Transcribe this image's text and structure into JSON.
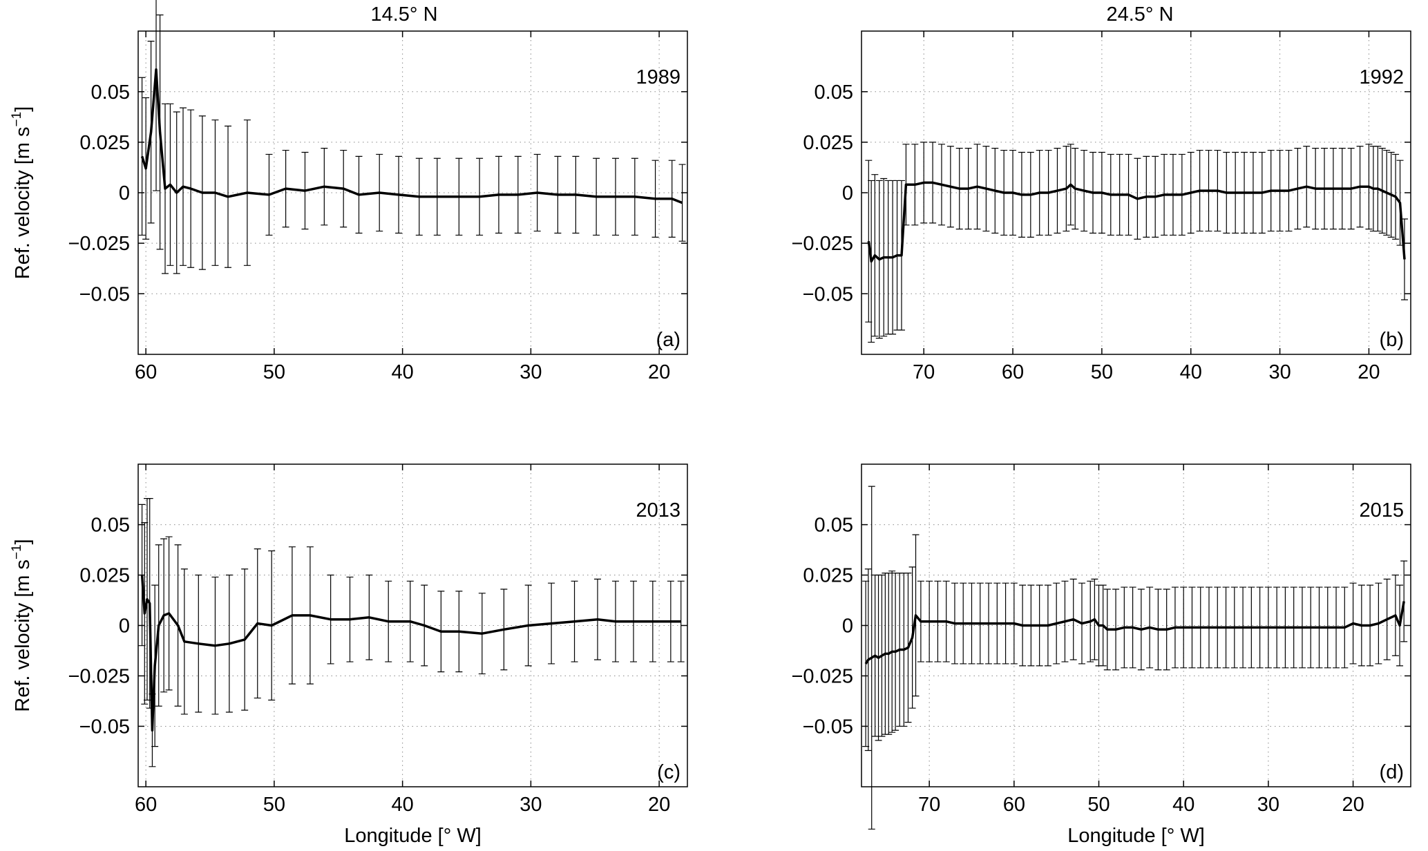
{
  "figure": {
    "column_titles": [
      "14.5° N",
      "24.5° N"
    ],
    "ylabel_main": "Ref. velocity [m s",
    "ylabel_exp": "−1",
    "ylabel_close": "]",
    "xlabel": "Longitude [° W]",
    "colors": {
      "line": "#000000",
      "grid": "#888888",
      "axes": "#000000",
      "background": "#ffffff"
    }
  },
  "chart_data": [
    {
      "panel": "(a)",
      "year": "1989",
      "type": "line",
      "title": "14.5° N",
      "xlabel": "",
      "ylabel": "Ref. velocity [m s−1]",
      "xlim": [
        60.6,
        17.8
      ],
      "ylim": [
        -0.08,
        0.08
      ],
      "xticks": [
        60,
        50,
        40,
        30,
        20
      ],
      "yticks": [
        -0.05,
        -0.025,
        0,
        0.025,
        0.05
      ],
      "ytick_labels": [
        "−0.05",
        "−0.025",
        "0",
        "0.025",
        "0.05"
      ],
      "grid": true,
      "x": [
        60.3,
        60.0,
        59.6,
        59.2,
        58.9,
        58.5,
        58.1,
        57.6,
        57.1,
        56.5,
        55.6,
        54.6,
        53.6,
        52.1,
        50.4,
        49.1,
        47.6,
        46.1,
        44.6,
        43.4,
        41.8,
        40.3,
        38.7,
        37.3,
        35.6,
        34.0,
        32.5,
        31.0,
        29.5,
        27.9,
        26.5,
        24.9,
        23.4,
        21.9,
        20.3,
        19.0,
        18.2
      ],
      "y": [
        0.018,
        0.012,
        0.03,
        0.061,
        0.03,
        0.002,
        0.004,
        0.0,
        0.003,
        0.002,
        0.0,
        0.0,
        -0.002,
        0.0,
        -0.001,
        0.002,
        0.001,
        0.003,
        0.002,
        -0.001,
        0.0,
        -0.001,
        -0.002,
        -0.002,
        -0.002,
        -0.002,
        -0.001,
        -0.001,
        0.0,
        -0.001,
        -0.001,
        -0.002,
        -0.002,
        -0.002,
        -0.003,
        -0.003,
        -0.005
      ],
      "err": [
        0.039,
        0.035,
        0.045,
        0.06,
        0.058,
        0.042,
        0.04,
        0.04,
        0.039,
        0.039,
        0.038,
        0.036,
        0.035,
        0.036,
        0.02,
        0.019,
        0.019,
        0.019,
        0.019,
        0.019,
        0.019,
        0.019,
        0.019,
        0.019,
        0.019,
        0.019,
        0.019,
        0.019,
        0.019,
        0.019,
        0.019,
        0.019,
        0.019,
        0.019,
        0.019,
        0.019,
        0.019
      ]
    },
    {
      "panel": "(b)",
      "year": "1992",
      "type": "line",
      "title": "24.5° N",
      "xlabel": "",
      "ylabel": "",
      "xlim": [
        77.0,
        15.3
      ],
      "ylim": [
        -0.08,
        0.08
      ],
      "xticks": [
        70,
        60,
        50,
        40,
        30,
        20
      ],
      "yticks": [
        -0.05,
        -0.025,
        0,
        0.025,
        0.05
      ],
      "ytick_labels": [
        "−0.05",
        "−0.025",
        "0",
        "0.025",
        "0.05"
      ],
      "grid": true,
      "x": [
        76.2,
        75.9,
        75.5,
        75.0,
        74.5,
        74.0,
        73.5,
        73.0,
        72.5,
        72.0,
        71.0,
        70.0,
        69.0,
        68.0,
        67.0,
        66.0,
        65.0,
        64.0,
        63.0,
        62.0,
        61.0,
        60.0,
        59.0,
        58.0,
        57.0,
        56.0,
        55.0,
        54.0,
        53.5,
        53.0,
        52.0,
        51.0,
        50.0,
        49.0,
        48.0,
        47.0,
        46.0,
        45.0,
        44.0,
        43.0,
        42.0,
        41.0,
        40.0,
        39.0,
        38.0,
        37.0,
        36.0,
        35.0,
        34.0,
        33.0,
        32.0,
        31.0,
        30.0,
        29.0,
        28.0,
        27.0,
        26.0,
        25.0,
        24.0,
        23.0,
        22.0,
        21.0,
        20.0,
        19.5,
        19.0,
        18.5,
        18.0,
        17.5,
        17.0,
        16.5,
        16.0
      ],
      "y": [
        -0.024,
        -0.034,
        -0.031,
        -0.033,
        -0.032,
        -0.032,
        -0.032,
        -0.031,
        -0.031,
        0.004,
        0.004,
        0.005,
        0.005,
        0.004,
        0.003,
        0.002,
        0.002,
        0.003,
        0.002,
        0.001,
        0.0,
        0.0,
        -0.001,
        -0.001,
        0.0,
        0.0,
        0.001,
        0.002,
        0.004,
        0.002,
        0.001,
        0.0,
        0.0,
        -0.001,
        -0.001,
        -0.001,
        -0.003,
        -0.002,
        -0.002,
        -0.001,
        -0.001,
        -0.001,
        0.0,
        0.001,
        0.001,
        0.001,
        0.0,
        0.0,
        0.0,
        0.0,
        0.0,
        0.001,
        0.001,
        0.001,
        0.002,
        0.003,
        0.002,
        0.002,
        0.002,
        0.002,
        0.002,
        0.003,
        0.003,
        0.002,
        0.002,
        0.001,
        0.0,
        -0.001,
        -0.002,
        -0.005,
        -0.033
      ],
      "err": [
        0.04,
        0.04,
        0.04,
        0.039,
        0.039,
        0.038,
        0.038,
        0.037,
        0.037,
        0.02,
        0.02,
        0.02,
        0.02,
        0.02,
        0.02,
        0.02,
        0.02,
        0.021,
        0.021,
        0.021,
        0.021,
        0.021,
        0.021,
        0.021,
        0.021,
        0.021,
        0.021,
        0.021,
        0.02,
        0.02,
        0.02,
        0.02,
        0.02,
        0.02,
        0.02,
        0.02,
        0.02,
        0.02,
        0.02,
        0.02,
        0.02,
        0.02,
        0.02,
        0.02,
        0.02,
        0.02,
        0.02,
        0.02,
        0.02,
        0.02,
        0.02,
        0.02,
        0.02,
        0.02,
        0.02,
        0.02,
        0.02,
        0.02,
        0.02,
        0.02,
        0.02,
        0.02,
        0.021,
        0.021,
        0.021,
        0.021,
        0.021,
        0.021,
        0.021,
        0.021,
        0.02
      ]
    },
    {
      "panel": "(c)",
      "year": "2013",
      "type": "line",
      "title": "",
      "xlabel": "Longitude [° W]",
      "ylabel": "Ref. velocity [m s−1]",
      "xlim": [
        60.6,
        17.8
      ],
      "ylim": [
        -0.08,
        0.08
      ],
      "xticks": [
        60,
        50,
        40,
        30,
        20
      ],
      "yticks": [
        -0.05,
        -0.025,
        0,
        0.025,
        0.05
      ],
      "ytick_labels": [
        "−0.05",
        "−0.025",
        "0",
        "0.025",
        "0.05"
      ],
      "grid": true,
      "x": [
        60.3,
        60.1,
        59.9,
        59.7,
        59.5,
        59.3,
        59.0,
        58.6,
        58.2,
        57.5,
        57.0,
        55.9,
        54.6,
        53.5,
        52.3,
        51.3,
        50.2,
        48.6,
        47.2,
        45.6,
        44.1,
        42.6,
        41.1,
        39.4,
        38.3,
        37.0,
        35.6,
        33.8,
        32.1,
        30.2,
        28.4,
        26.6,
        24.8,
        23.4,
        22.0,
        20.5,
        19.1,
        18.3
      ],
      "y": [
        0.025,
        0.006,
        0.013,
        0.011,
        -0.052,
        -0.02,
        0.0,
        0.005,
        0.006,
        0.0,
        -0.008,
        -0.009,
        -0.01,
        -0.009,
        -0.007,
        0.001,
        0.0,
        0.005,
        0.005,
        0.003,
        0.003,
        0.004,
        0.002,
        0.002,
        0.0,
        -0.003,
        -0.003,
        -0.004,
        -0.002,
        0.0,
        0.001,
        0.002,
        0.003,
        0.002,
        0.002,
        0.002,
        0.002,
        0.002
      ],
      "err": [
        0.035,
        0.045,
        0.05,
        0.052,
        0.018,
        0.04,
        0.04,
        0.038,
        0.038,
        0.04,
        0.036,
        0.034,
        0.034,
        0.034,
        0.035,
        0.037,
        0.037,
        0.034,
        0.034,
        0.022,
        0.021,
        0.021,
        0.02,
        0.02,
        0.02,
        0.02,
        0.02,
        0.02,
        0.02,
        0.02,
        0.02,
        0.02,
        0.02,
        0.02,
        0.02,
        0.02,
        0.02,
        0.02
      ]
    },
    {
      "panel": "(d)",
      "year": "2015",
      "type": "line",
      "title": "",
      "xlabel": "Longitude [° W]",
      "ylabel": "",
      "xlim": [
        78.0,
        13.2
      ],
      "ylim": [
        -0.08,
        0.08
      ],
      "xticks": [
        70,
        60,
        50,
        40,
        30,
        20
      ],
      "yticks": [
        -0.05,
        -0.025,
        0,
        0.025,
        0.05
      ],
      "ytick_labels": [
        "−0.05",
        "−0.025",
        "0",
        "0.025",
        "0.05"
      ],
      "grid": true,
      "x": [
        77.5,
        77.2,
        76.8,
        76.4,
        76.0,
        75.6,
        75.2,
        74.8,
        74.4,
        74.0,
        73.5,
        73.0,
        72.5,
        72.0,
        71.6,
        71.0,
        70.0,
        69.0,
        68.0,
        67.0,
        66.0,
        65.0,
        64.0,
        63.0,
        62.0,
        61.0,
        60.0,
        59.0,
        58.0,
        57.0,
        56.0,
        55.0,
        54.0,
        53.0,
        52.0,
        51.0,
        50.5,
        50.0,
        49.5,
        49.0,
        48.0,
        47.0,
        46.0,
        45.0,
        44.0,
        43.0,
        42.0,
        41.0,
        40.0,
        39.0,
        38.0,
        37.0,
        36.0,
        35.0,
        34.0,
        33.0,
        32.0,
        31.0,
        30.0,
        29.0,
        28.0,
        27.0,
        26.0,
        25.0,
        24.0,
        23.0,
        22.0,
        21.0,
        20.0,
        19.0,
        18.0,
        17.0,
        16.0,
        15.0,
        14.5,
        14.0
      ],
      "y": [
        -0.019,
        -0.017,
        -0.016,
        -0.015,
        -0.016,
        -0.015,
        -0.014,
        -0.014,
        -0.013,
        -0.013,
        -0.012,
        -0.012,
        -0.011,
        -0.006,
        0.005,
        0.002,
        0.002,
        0.002,
        0.002,
        0.001,
        0.001,
        0.001,
        0.001,
        0.001,
        0.001,
        0.001,
        0.001,
        0.0,
        0.0,
        0.0,
        0.0,
        0.001,
        0.002,
        0.003,
        0.001,
        0.002,
        0.003,
        0.0,
        0.0,
        -0.002,
        -0.002,
        -0.001,
        -0.001,
        -0.002,
        -0.001,
        -0.002,
        -0.002,
        -0.001,
        -0.001,
        -0.001,
        -0.001,
        -0.001,
        -0.001,
        -0.001,
        -0.001,
        -0.001,
        -0.001,
        -0.001,
        -0.001,
        -0.001,
        -0.001,
        -0.001,
        -0.001,
        -0.001,
        -0.001,
        -0.001,
        -0.001,
        -0.001,
        0.001,
        0.0,
        0.0,
        0.001,
        0.003,
        0.005,
        0.0,
        0.012
      ],
      "err": [
        0.041,
        0.045,
        0.085,
        0.04,
        0.041,
        0.04,
        0.04,
        0.04,
        0.04,
        0.039,
        0.038,
        0.038,
        0.037,
        0.035,
        0.04,
        0.02,
        0.02,
        0.02,
        0.02,
        0.02,
        0.02,
        0.02,
        0.02,
        0.02,
        0.02,
        0.02,
        0.02,
        0.02,
        0.02,
        0.02,
        0.02,
        0.02,
        0.02,
        0.02,
        0.02,
        0.02,
        0.02,
        0.02,
        0.02,
        0.02,
        0.02,
        0.02,
        0.02,
        0.02,
        0.02,
        0.02,
        0.02,
        0.02,
        0.02,
        0.02,
        0.02,
        0.02,
        0.02,
        0.02,
        0.02,
        0.02,
        0.02,
        0.02,
        0.02,
        0.02,
        0.02,
        0.02,
        0.02,
        0.02,
        0.02,
        0.02,
        0.02,
        0.02,
        0.02,
        0.02,
        0.02,
        0.02,
        0.02,
        0.02,
        0.02,
        0.02
      ]
    }
  ]
}
